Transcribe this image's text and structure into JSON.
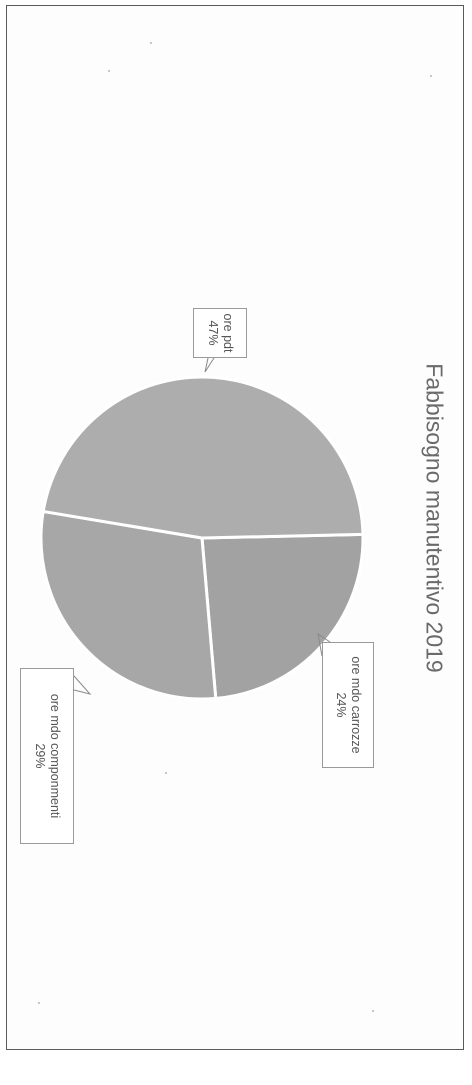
{
  "chart_data": {
    "type": "pie",
    "title": "Fabbisogno manutentivo 2019",
    "slices": [
      {
        "label": "ore pdt",
        "value": 47,
        "value_label": "47%",
        "color": "#adadad"
      },
      {
        "label": "ore mdo carrozze",
        "value": 24,
        "value_label": "24%",
        "color": "#a2a2a2"
      },
      {
        "label": "ore mdo componmenti",
        "value": 29,
        "value_label": "29%",
        "color": "#a7a7a7"
      }
    ],
    "legend": "none",
    "data_labels": "callouts",
    "orientation": "rotated 90 degrees clockwise"
  }
}
